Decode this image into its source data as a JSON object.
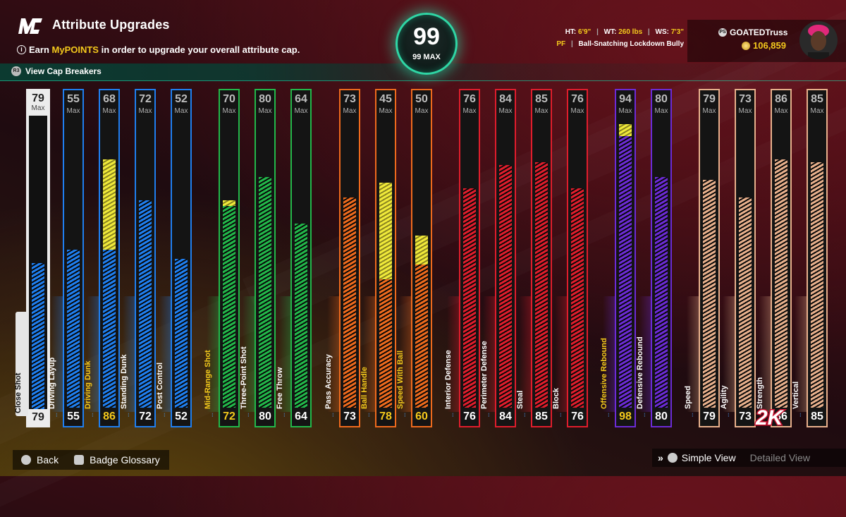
{
  "header": {
    "logo": "MC",
    "title": "Attribute Upgrades",
    "subtitle_pre": "Earn ",
    "subtitle_highlight": "MyPOINTS",
    "subtitle_post": " in order to upgrade your overall attribute cap.",
    "cap_breakers": "View Cap Breakers"
  },
  "overall": {
    "value": "99",
    "max_label": "99 MAX",
    "accent": "#2fd6a5"
  },
  "player": {
    "ht_label": "HT:",
    "ht": "6'9\"",
    "wt_label": "WT:",
    "wt": "260 lbs",
    "ws_label": "WS:",
    "ws": "7'3\"",
    "position": "PF",
    "archetype": "Ball-Snatching Lockdown Bully"
  },
  "user": {
    "name": "GOATEDTruss",
    "coins": "106,859"
  },
  "max_word": "Max",
  "attributes": [
    {
      "name": "Close Shot",
      "cap": 79,
      "current": 79,
      "upgrade": 79,
      "color": "#ffffff",
      "selected": true
    },
    {
      "name": "Driving Layup",
      "cap": 55,
      "current": 55,
      "upgrade": 55,
      "color": "#1f7ff0"
    },
    {
      "name": "Driving Dunk",
      "cap": 68,
      "current": 55,
      "upgrade": 86,
      "color": "#1f7ff0"
    },
    {
      "name": "Standing Dunk",
      "cap": 72,
      "current": 72,
      "upgrade": 72,
      "color": "#1f7ff0"
    },
    {
      "name": "Post Control",
      "cap": 52,
      "current": 52,
      "upgrade": 52,
      "color": "#1f7ff0"
    },
    {
      "name": "Mid-Range Shot",
      "cap": 70,
      "current": 70,
      "upgrade": 72,
      "color": "#22b84a"
    },
    {
      "name": "Three-Point Shot",
      "cap": 80,
      "current": 80,
      "upgrade": 80,
      "color": "#22b84a"
    },
    {
      "name": "Free Throw",
      "cap": 64,
      "current": 64,
      "upgrade": 64,
      "color": "#22b84a"
    },
    {
      "name": "Pass Accuracy",
      "cap": 73,
      "current": 73,
      "upgrade": 73,
      "color": "#ee6a1d"
    },
    {
      "name": "Ball Handle",
      "cap": 45,
      "current": 45,
      "upgrade": 78,
      "color": "#ee6a1d"
    },
    {
      "name": "Speed With Ball",
      "cap": 50,
      "current": 50,
      "upgrade": 60,
      "color": "#ee6a1d"
    },
    {
      "name": "Interior Defense",
      "cap": 76,
      "current": 76,
      "upgrade": 76,
      "color": "#e01d2c"
    },
    {
      "name": "Perimeter Defense",
      "cap": 84,
      "current": 84,
      "upgrade": 84,
      "color": "#e01d2c"
    },
    {
      "name": "Steal",
      "cap": 85,
      "current": 85,
      "upgrade": 85,
      "color": "#e01d2c"
    },
    {
      "name": "Block",
      "cap": 76,
      "current": 76,
      "upgrade": 76,
      "color": "#e01d2c"
    },
    {
      "name": "Offensive Rebound",
      "cap": 94,
      "current": 94,
      "upgrade": 98,
      "color": "#6c2bd6"
    },
    {
      "name": "Defensive Rebound",
      "cap": 80,
      "current": 80,
      "upgrade": 80,
      "color": "#6c2bd6"
    },
    {
      "name": "Speed",
      "cap": 79,
      "current": 79,
      "upgrade": 79,
      "color": "#e8b08c"
    },
    {
      "name": "Agility",
      "cap": 73,
      "current": 73,
      "upgrade": 73,
      "color": "#e8b08c"
    },
    {
      "name": "Strength",
      "cap": 86,
      "current": 86,
      "upgrade": 86,
      "color": "#e8b08c"
    },
    {
      "name": "Vertical",
      "cap": 85,
      "current": 85,
      "upgrade": 85,
      "color": "#e8b08c"
    }
  ],
  "footer": {
    "back": "Back",
    "glossary": "Badge Glossary",
    "simple_view": "Simple View",
    "detailed_view": "Detailed View"
  },
  "brand_logo": "2K"
}
